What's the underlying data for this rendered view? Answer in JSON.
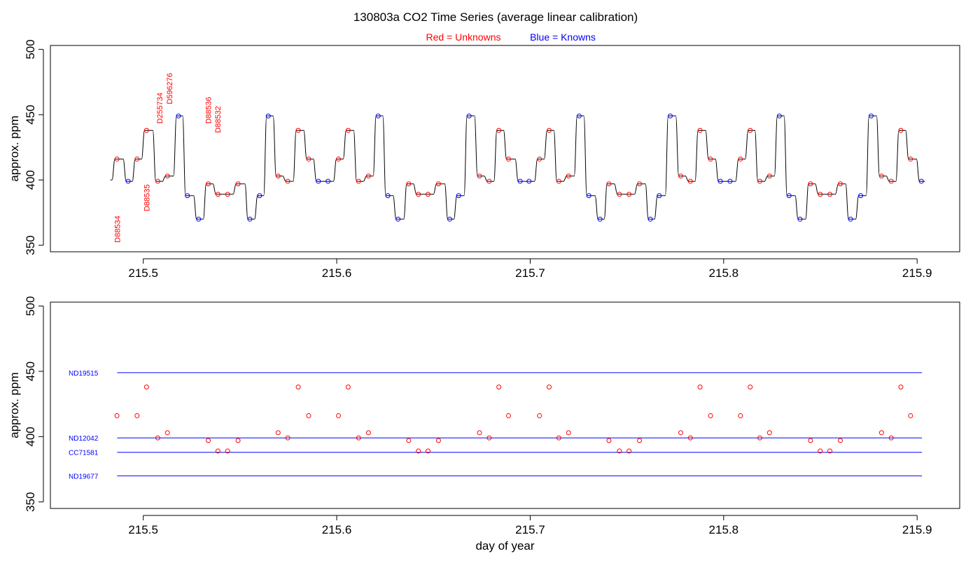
{
  "title": "130803a   CO2 Time Series (average linear calibration)",
  "subtitle": {
    "unknowns": "Red = Unknowns",
    "knowns": "Blue = Knowns"
  },
  "colors": {
    "unknown": "#ff0000",
    "known": "#0000ff",
    "trace": "#000000",
    "axis": "#000000"
  },
  "chart_data": [
    {
      "type": "line",
      "panel": "top",
      "ylabel": "approx. ppm",
      "xlabel": "",
      "xlim": [
        215.452,
        215.922
      ],
      "ylim": [
        345,
        503
      ],
      "xticks": [
        215.5,
        215.6,
        215.7,
        215.8,
        215.9
      ],
      "xtick_labels": [
        "215.5",
        "215.6",
        "215.7",
        "215.8",
        "215.9"
      ],
      "yticks": [
        350,
        400,
        450,
        500
      ],
      "ytick_labels": [
        "350",
        "400",
        "450",
        "500"
      ],
      "trace_start": [
        215.483,
        400
      ],
      "series": [
        {
          "name": "Knowns",
          "points": [
            [
              215.4922,
              399
            ],
            [
              215.5182,
              449
            ],
            [
              215.5228,
              388
            ],
            [
              215.5286,
              370
            ],
            [
              215.5551,
              370
            ],
            [
              215.5601,
              388
            ],
            [
              215.5646,
              449
            ],
            [
              215.5905,
              399
            ],
            [
              215.5955,
              399
            ],
            [
              215.6214,
              449
            ],
            [
              215.6264,
              388
            ],
            [
              215.6317,
              370
            ],
            [
              215.6584,
              370
            ],
            [
              215.663,
              388
            ],
            [
              215.6684,
              449
            ],
            [
              215.6948,
              399
            ],
            [
              215.6994,
              399
            ],
            [
              215.7253,
              449
            ],
            [
              215.7303,
              388
            ],
            [
              215.7361,
              370
            ],
            [
              215.7621,
              370
            ],
            [
              215.7667,
              388
            ],
            [
              215.7724,
              449
            ],
            [
              215.7983,
              399
            ],
            [
              215.8033,
              399
            ],
            [
              215.8288,
              449
            ],
            [
              215.8338,
              388
            ],
            [
              215.8395,
              370
            ],
            [
              215.8656,
              370
            ],
            [
              215.8708,
              388
            ],
            [
              215.8762,
              449
            ],
            [
              215.9022,
              399
            ]
          ]
        },
        {
          "name": "Unknowns",
          "points": [
            [
              215.4864,
              416
            ],
            [
              215.4968,
              416
            ],
            [
              215.5017,
              438
            ],
            [
              215.5075,
              399
            ],
            [
              215.5125,
              403
            ],
            [
              215.5336,
              397
            ],
            [
              215.5386,
              389
            ],
            [
              215.5436,
              389
            ],
            [
              215.549,
              397
            ],
            [
              215.5697,
              403
            ],
            [
              215.5747,
              399
            ],
            [
              215.5801,
              438
            ],
            [
              215.5855,
              416
            ],
            [
              215.6009,
              416
            ],
            [
              215.6059,
              438
            ],
            [
              215.6113,
              399
            ],
            [
              215.6164,
              403
            ],
            [
              215.6372,
              397
            ],
            [
              215.6422,
              389
            ],
            [
              215.6472,
              389
            ],
            [
              215.6526,
              397
            ],
            [
              215.6738,
              403
            ],
            [
              215.6788,
              399
            ],
            [
              215.6838,
              438
            ],
            [
              215.6888,
              416
            ],
            [
              215.7048,
              416
            ],
            [
              215.7098,
              438
            ],
            [
              215.7148,
              399
            ],
            [
              215.7198,
              403
            ],
            [
              215.7407,
              397
            ],
            [
              215.7461,
              389
            ],
            [
              215.7511,
              389
            ],
            [
              215.7565,
              397
            ],
            [
              215.7778,
              403
            ],
            [
              215.7828,
              399
            ],
            [
              215.7878,
              438
            ],
            [
              215.7932,
              416
            ],
            [
              215.8087,
              416
            ],
            [
              215.8137,
              438
            ],
            [
              215.8187,
              399
            ],
            [
              215.8237,
              403
            ],
            [
              215.8449,
              397
            ],
            [
              215.8499,
              389
            ],
            [
              215.8549,
              389
            ],
            [
              215.8603,
              397
            ],
            [
              215.8816,
              403
            ],
            [
              215.8866,
              399
            ],
            [
              215.8916,
              438
            ],
            [
              215.8966,
              416
            ]
          ]
        }
      ],
      "annotations": [
        {
          "text": "D88534",
          "x": 215.4865,
          "y": 352
        },
        {
          "text": "D88535",
          "x": 215.5017,
          "y": 376
        },
        {
          "text": "D255734",
          "x": 215.5085,
          "y": 443
        },
        {
          "text": "D596276",
          "x": 215.5135,
          "y": 458
        },
        {
          "text": "D88536",
          "x": 215.5335,
          "y": 443
        },
        {
          "text": "D88532",
          "x": 215.5385,
          "y": 436
        }
      ]
    },
    {
      "type": "scatter",
      "panel": "bottom",
      "ylabel": "approx. ppm",
      "xlabel": "day of year",
      "xlim": [
        215.452,
        215.922
      ],
      "ylim": [
        345,
        503
      ],
      "xticks": [
        215.5,
        215.6,
        215.7,
        215.8,
        215.9
      ],
      "xtick_labels": [
        "215.5",
        "215.6",
        "215.7",
        "215.8",
        "215.9"
      ],
      "yticks": [
        350,
        400,
        450,
        500
      ],
      "ytick_labels": [
        "350",
        "400",
        "450",
        "500"
      ],
      "reference_lines": [
        {
          "name": "ND19515",
          "y": 449,
          "x": [
            215.4865,
            215.9025
          ]
        },
        {
          "name": "ND12042",
          "y": 399,
          "x": [
            215.4865,
            215.9025
          ]
        },
        {
          "name": "CC71581",
          "y": 388,
          "x": [
            215.4865,
            215.9025
          ]
        },
        {
          "name": "ND19677",
          "y": 370,
          "x": [
            215.4865,
            215.9025
          ]
        }
      ],
      "series": [
        {
          "name": "Unknowns",
          "points": [
            [
              215.4864,
              416
            ],
            [
              215.4968,
              416
            ],
            [
              215.5017,
              438
            ],
            [
              215.5075,
              399
            ],
            [
              215.5125,
              403
            ],
            [
              215.5336,
              397
            ],
            [
              215.5386,
              389
            ],
            [
              215.5436,
              389
            ],
            [
              215.549,
              397
            ],
            [
              215.5697,
              403
            ],
            [
              215.5747,
              399
            ],
            [
              215.5801,
              438
            ],
            [
              215.5855,
              416
            ],
            [
              215.6009,
              416
            ],
            [
              215.6059,
              438
            ],
            [
              215.6113,
              399
            ],
            [
              215.6164,
              403
            ],
            [
              215.6372,
              397
            ],
            [
              215.6422,
              389
            ],
            [
              215.6472,
              389
            ],
            [
              215.6526,
              397
            ],
            [
              215.6738,
              403
            ],
            [
              215.6788,
              399
            ],
            [
              215.6838,
              438
            ],
            [
              215.6888,
              416
            ],
            [
              215.7048,
              416
            ],
            [
              215.7098,
              438
            ],
            [
              215.7148,
              399
            ],
            [
              215.7198,
              403
            ],
            [
              215.7407,
              397
            ],
            [
              215.7461,
              389
            ],
            [
              215.7511,
              389
            ],
            [
              215.7565,
              397
            ],
            [
              215.7778,
              403
            ],
            [
              215.7828,
              399
            ],
            [
              215.7878,
              438
            ],
            [
              215.7932,
              416
            ],
            [
              215.8087,
              416
            ],
            [
              215.8137,
              438
            ],
            [
              215.8187,
              399
            ],
            [
              215.8237,
              403
            ],
            [
              215.8449,
              397
            ],
            [
              215.8499,
              389
            ],
            [
              215.8549,
              389
            ],
            [
              215.8603,
              397
            ],
            [
              215.8816,
              403
            ],
            [
              215.8866,
              399
            ],
            [
              215.8916,
              438
            ],
            [
              215.8966,
              416
            ]
          ]
        }
      ]
    }
  ]
}
